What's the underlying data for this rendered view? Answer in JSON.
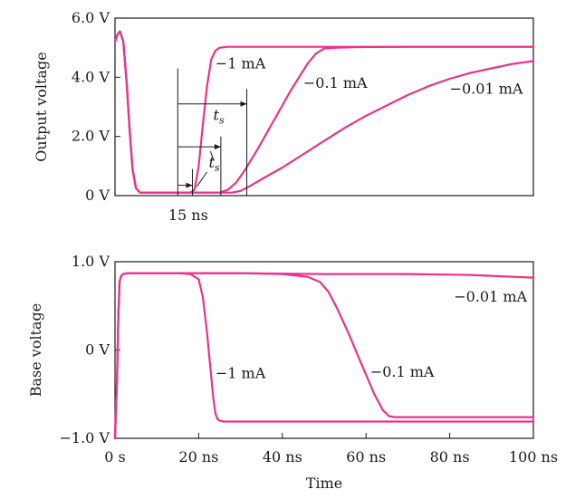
{
  "chart_data": [
    {
      "type": "line",
      "ylabel": "Output voltage",
      "xlim": [
        0,
        100
      ],
      "ylim": [
        0,
        6
      ],
      "y_ticks": [
        {
          "value": 0,
          "label": "0 V"
        },
        {
          "value": 2,
          "label": "2.0 V"
        },
        {
          "value": 4,
          "label": "4.0 V"
        },
        {
          "value": 6,
          "label": "6.0 V"
        }
      ],
      "grid": false,
      "series": [
        {
          "name": "−1 mA",
          "x": [
            0,
            0.6,
            1.2,
            2,
            2.8,
            3.5,
            4.2,
            5,
            6,
            8,
            15,
            18,
            19,
            20,
            21,
            22,
            23,
            24,
            25,
            27,
            30,
            50,
            100
          ],
          "y": [
            5.2,
            5.45,
            5.55,
            5.2,
            3.8,
            2.2,
            0.9,
            0.25,
            0.1,
            0.1,
            0.1,
            0.1,
            0.2,
            1.0,
            2.4,
            3.7,
            4.6,
            4.9,
            5.0,
            5.03,
            5.03,
            5.03,
            5.03
          ]
        },
        {
          "name": "−0.1 mA",
          "x": [
            0,
            0.6,
            1.2,
            2,
            2.8,
            3.5,
            4.2,
            5,
            6,
            8,
            25,
            27,
            29,
            31,
            34,
            38,
            42,
            46,
            48,
            50,
            53,
            58,
            70,
            100
          ],
          "y": [
            5.2,
            5.45,
            5.55,
            5.2,
            3.8,
            2.2,
            0.9,
            0.25,
            0.1,
            0.1,
            0.1,
            0.2,
            0.45,
            0.85,
            1.55,
            2.55,
            3.55,
            4.45,
            4.8,
            4.97,
            5.0,
            5.02,
            5.03,
            5.03
          ]
        },
        {
          "name": "−0.01 mA",
          "x": [
            0,
            0.6,
            1.2,
            2,
            2.8,
            3.5,
            4.2,
            5,
            6,
            8,
            28,
            30,
            32,
            35,
            40,
            45,
            50,
            55,
            60,
            65,
            70,
            75,
            80,
            85,
            90,
            95,
            100
          ],
          "y": [
            5.2,
            5.45,
            5.55,
            5.2,
            3.8,
            2.2,
            0.9,
            0.25,
            0.1,
            0.1,
            0.1,
            0.16,
            0.3,
            0.55,
            0.95,
            1.4,
            1.85,
            2.3,
            2.7,
            3.05,
            3.4,
            3.7,
            3.95,
            4.15,
            4.3,
            4.45,
            4.55
          ]
        }
      ],
      "annotations": {
        "period_label": "15 ns",
        "storage_time_label_main": "t",
        "storage_time_label_sub": "s"
      }
    },
    {
      "type": "line",
      "xlabel": "Time",
      "ylabel": "Base voltage",
      "xlim": [
        0,
        100
      ],
      "ylim": [
        -1,
        1
      ],
      "x_ticks": [
        {
          "value": 0,
          "label": "0 s"
        },
        {
          "value": 20,
          "label": "20 ns"
        },
        {
          "value": 40,
          "label": "40 ns"
        },
        {
          "value": 60,
          "label": "60 ns"
        },
        {
          "value": 80,
          "label": "80 ns"
        },
        {
          "value": 100,
          "label": "100 ns"
        }
      ],
      "y_ticks": [
        {
          "value": -1,
          "label": "−1.0 V"
        },
        {
          "value": 0,
          "label": "0 V"
        },
        {
          "value": 1,
          "label": "1.0 V"
        }
      ],
      "grid": false,
      "series": [
        {
          "name": "−1 mA",
          "x": [
            0,
            0.5,
            0.8,
            1.1,
            1.5,
            2,
            3,
            4,
            8,
            15,
            18,
            20,
            21,
            22,
            22.8,
            23.5,
            24,
            24.5,
            25,
            26,
            30,
            100
          ],
          "y": [
            -1.0,
            -0.3,
            0.4,
            0.78,
            0.84,
            0.86,
            0.87,
            0.87,
            0.87,
            0.87,
            0.86,
            0.8,
            0.6,
            0.2,
            -0.2,
            -0.55,
            -0.72,
            -0.78,
            -0.8,
            -0.81,
            -0.81,
            -0.81
          ]
        },
        {
          "name": "−0.1 mA",
          "x": [
            0,
            0.5,
            0.8,
            1.1,
            1.5,
            2,
            3,
            4,
            8,
            30,
            40,
            46,
            49,
            51,
            53,
            56,
            59,
            62,
            64,
            65.5,
            67,
            70,
            100
          ],
          "y": [
            -1.0,
            -0.3,
            0.4,
            0.78,
            0.84,
            0.86,
            0.87,
            0.87,
            0.87,
            0.87,
            0.86,
            0.83,
            0.77,
            0.66,
            0.48,
            0.17,
            -0.17,
            -0.5,
            -0.68,
            -0.75,
            -0.76,
            -0.76,
            -0.76
          ]
        },
        {
          "name": "−0.01 mA",
          "x": [
            0,
            0.5,
            0.8,
            1.1,
            1.5,
            2,
            3,
            4,
            8,
            30,
            50,
            70,
            85,
            95,
            100
          ],
          "y": [
            -1.0,
            -0.3,
            0.4,
            0.78,
            0.84,
            0.86,
            0.87,
            0.87,
            0.87,
            0.87,
            0.86,
            0.86,
            0.85,
            0.83,
            0.82
          ]
        }
      ]
    }
  ],
  "colors": {
    "curve": "#e8338c",
    "ink": "#1a1a1a",
    "background": "#ffffff"
  }
}
